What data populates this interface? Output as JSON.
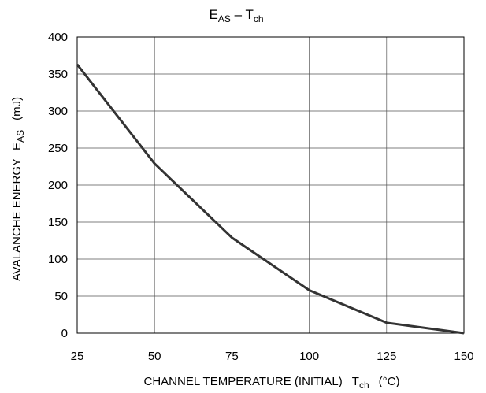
{
  "chart_data": {
    "type": "line",
    "title": {
      "main": "E",
      "main_sub": "AS",
      "sep": " – ",
      "var": "T",
      "var_sub": "ch"
    },
    "xlabel": {
      "text": "CHANNEL TEMPERATURE (INITIAL)",
      "symbol": "T",
      "symbol_sub": "ch",
      "unit": "(°C)"
    },
    "ylabel": {
      "text": "AVALANCHE ENERGY",
      "symbol": "E",
      "symbol_sub": "AS",
      "unit": "(mJ)"
    },
    "xlim": [
      25,
      150
    ],
    "ylim": [
      0,
      400
    ],
    "xticks": [
      25,
      50,
      75,
      100,
      125,
      150
    ],
    "yticks": [
      0,
      50,
      100,
      150,
      200,
      250,
      300,
      350,
      400
    ],
    "grid": true,
    "series": [
      {
        "x": [
          25,
          50,
          75,
          100,
          125,
          150
        ],
        "y": [
          363,
          229,
          129,
          58,
          14,
          0
        ],
        "color": "#333333"
      }
    ]
  }
}
